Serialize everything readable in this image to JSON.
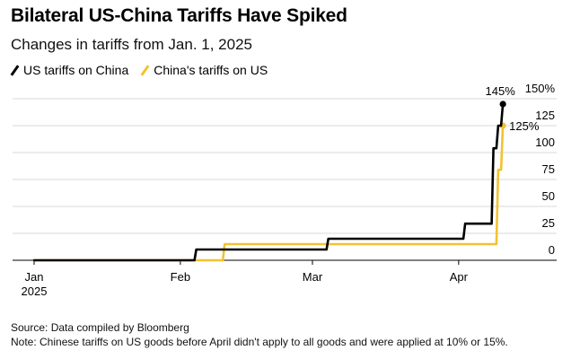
{
  "header": {
    "title": "Bilateral US-China Tariffs Have Spiked",
    "subtitle": "Changes in tariffs from Jan. 1, 2025"
  },
  "footer": {
    "source": "Source: Data compiled by Bloomberg",
    "note": "Note: Chinese tariffs on US goods before April didn't apply to all goods and were applied at 10% or 15%."
  },
  "colors": {
    "us": "#000000",
    "china": "#f2c230",
    "grid": "#d9d9d9",
    "axis": "#000000"
  },
  "chart_data": {
    "type": "line",
    "title": "Bilateral US-China Tariffs Have Spiked",
    "subtitle": "Changes in tariffs from Jan. 1, 2025",
    "xlabel": "",
    "ylabel": "",
    "y_axis_position": "right",
    "grid": "horizontal",
    "legend_position": "top-left",
    "xlim": [
      "2025-01-01",
      "2025-04-21"
    ],
    "ylim": [
      -5,
      150
    ],
    "y_ticks": [
      0,
      25,
      50,
      75,
      100,
      125,
      150
    ],
    "y_tick_labels": [
      "0",
      "25",
      "50",
      "75",
      "100",
      "125",
      "150%"
    ],
    "x_ticks": [
      "2025-01-01",
      "2025-02-01",
      "2025-03-01",
      "2025-04-01"
    ],
    "x_tick_labels": [
      "Jan\n2025",
      "Feb",
      "Mar",
      "Apr"
    ],
    "series": [
      {
        "name": "US tariffs on China",
        "color": "#000000",
        "step": true,
        "points": [
          [
            "2025-01-01",
            0
          ],
          [
            "2025-02-04",
            0
          ],
          [
            "2025-02-04",
            10
          ],
          [
            "2025-03-04",
            10
          ],
          [
            "2025-03-04",
            20
          ],
          [
            "2025-04-02",
            20
          ],
          [
            "2025-04-02",
            34
          ],
          [
            "2025-04-08",
            34
          ],
          [
            "2025-04-08",
            104
          ],
          [
            "2025-04-09",
            104
          ],
          [
            "2025-04-09",
            125
          ],
          [
            "2025-04-10",
            125
          ],
          [
            "2025-04-10",
            145
          ]
        ],
        "end_label": "145%"
      },
      {
        "name": "China's tariffs on US",
        "color": "#f2c230",
        "step": true,
        "points": [
          [
            "2025-01-01",
            0
          ],
          [
            "2025-02-10",
            0
          ],
          [
            "2025-02-10",
            15
          ],
          [
            "2025-04-09",
            15
          ],
          [
            "2025-04-09",
            84
          ],
          [
            "2025-04-10",
            84
          ],
          [
            "2025-04-10",
            125
          ]
        ],
        "end_label": "125%"
      }
    ]
  }
}
